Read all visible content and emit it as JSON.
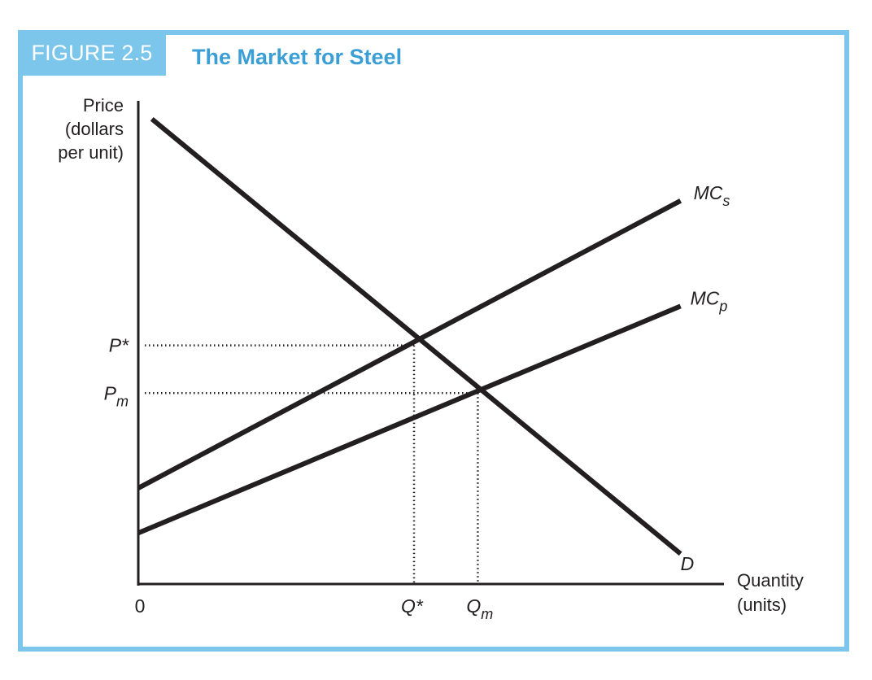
{
  "figure": {
    "label": "FIGURE 2.5",
    "title": "The Market for Steel"
  },
  "colors": {
    "frame": "#7cc6ec",
    "title": "#3b9fd6",
    "ink": "#231f20"
  },
  "chart_data": {
    "type": "line",
    "title": "The Market for Steel",
    "ylabel": [
      "Price",
      "(dollars",
      "per unit)"
    ],
    "xlabel": [
      "Quantity",
      "(units)"
    ],
    "origin_label": "0",
    "xlim": [
      0,
      100
    ],
    "ylim": [
      0,
      100
    ],
    "grid": false,
    "series": [
      {
        "name": "D",
        "x": [
          2.5,
          99.5
        ],
        "y": [
          98.4,
          6.4
        ]
      },
      {
        "name": "MCs",
        "x": [
          0,
          99.5
        ],
        "y": [
          20.3,
          81.1
        ]
      },
      {
        "name": "MCp",
        "x": [
          0,
          99.5
        ],
        "y": [
          10.8,
          58.8
        ]
      }
    ],
    "curve_labels": [
      {
        "series": "MCs",
        "main": "MC",
        "sub": "s"
      },
      {
        "series": "MCp",
        "main": "MC",
        "sub": "p"
      },
      {
        "series": "D",
        "main": "D",
        "sub": ""
      }
    ],
    "reference_points": [
      {
        "x": 50.6,
        "y": 50.5,
        "x_label_main": "Q*",
        "x_label_sub": "",
        "y_label_main": "P*",
        "y_label_sub": ""
      },
      {
        "x": 62.3,
        "y": 40.4,
        "x_label_main": "Q",
        "x_label_sub": "m",
        "y_label_main": "P",
        "y_label_sub": "m"
      }
    ]
  }
}
